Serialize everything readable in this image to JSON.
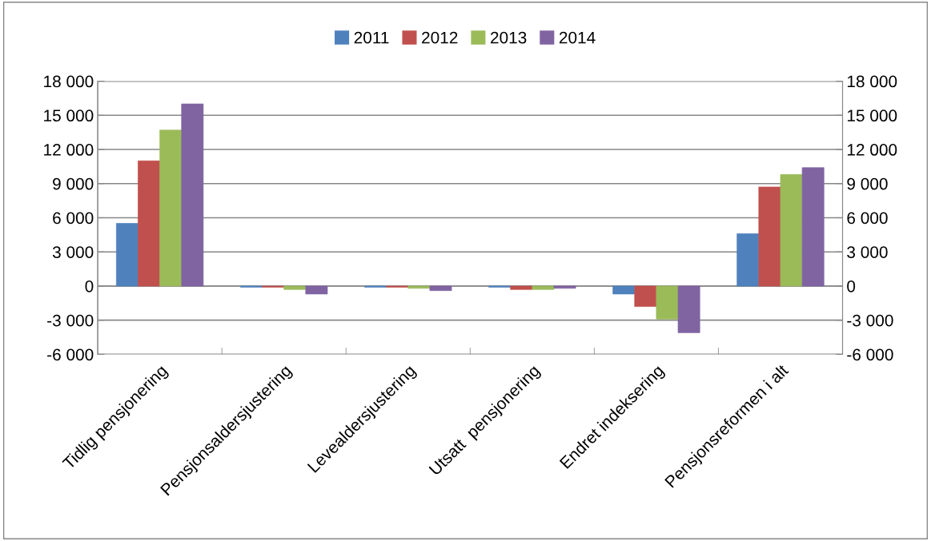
{
  "chart_data": {
    "type": "bar",
    "categories": [
      "Tidlig pensjonering",
      "Pensjonsaldersjustering",
      "Levealdersjustering",
      "Utsatt  pensjonering",
      "Endret indeksering",
      "Pensjonsreformen i alt"
    ],
    "series": [
      {
        "name": "2011",
        "color": "#4f81bd",
        "values": [
          5500,
          -100,
          -100,
          -100,
          -700,
          4600
        ]
      },
      {
        "name": "2012",
        "color": "#c0504d",
        "values": [
          11000,
          -100,
          -100,
          -300,
          -1800,
          8700
        ]
      },
      {
        "name": "2013",
        "color": "#9bbb59",
        "values": [
          13700,
          -300,
          -200,
          -300,
          -2900,
          9800
        ]
      },
      {
        "name": "2014",
        "color": "#8064a2",
        "values": [
          16000,
          -700,
          -400,
          -200,
          -4100,
          10400
        ]
      }
    ],
    "ylim": [
      -6000,
      18000
    ],
    "yticks": [
      {
        "value": -6000,
        "label": "-6 000"
      },
      {
        "value": -3000,
        "label": "-3 000"
      },
      0,
      {
        "value": 3000,
        "label": "3 000"
      },
      {
        "value": 6000,
        "label": "6 000"
      },
      {
        "value": 9000,
        "label": "9 000"
      },
      {
        "value": 12000,
        "label": "12 000"
      },
      {
        "value": 15000,
        "label": "15 000"
      },
      {
        "value": 18000,
        "label": "18 000"
      }
    ],
    "y2lim": [
      -6000,
      18000
    ],
    "y2ticks": [
      {
        "value": -6000,
        "label": "-6 000"
      },
      {
        "value": -3000,
        "label": "-3 000"
      },
      0,
      {
        "value": 3000,
        "label": "3 000"
      },
      {
        "value": 6000,
        "label": "6 000"
      },
      {
        "value": 9000,
        "label": "9 000"
      },
      {
        "value": 12000,
        "label": "12 000"
      },
      {
        "value": 15000,
        "label": "15 000"
      },
      {
        "value": 18000,
        "label": "18 000"
      }
    ],
    "grid": "y",
    "legend": "top"
  }
}
